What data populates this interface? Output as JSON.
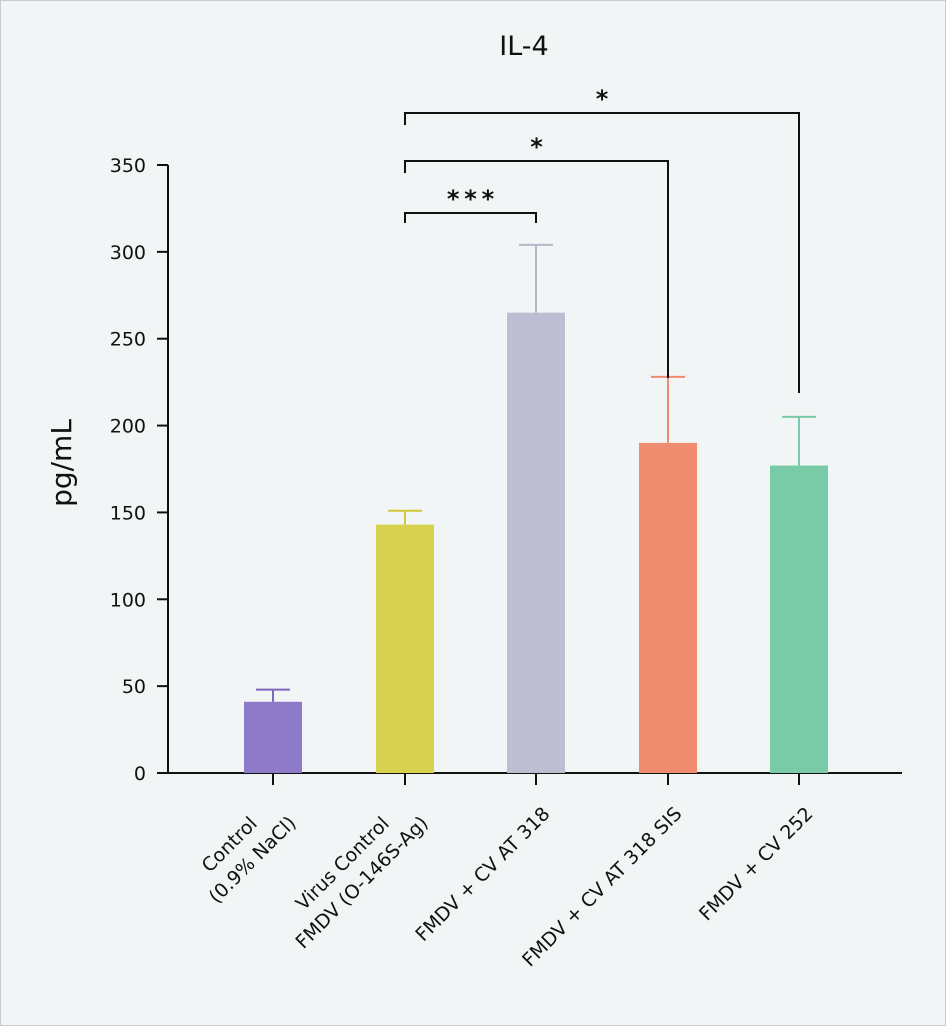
{
  "chart_data": {
    "type": "bar",
    "title": "IL-4",
    "xlabel": "",
    "ylabel": "pg/mL",
    "ylim": [
      0,
      350
    ],
    "yticks": [
      0,
      50,
      100,
      150,
      200,
      250,
      300,
      350
    ],
    "grid": false,
    "categories": [
      [
        "Control",
        "(0.9% NaCl)"
      ],
      [
        "Virus Control",
        "FMDV (O-146S-Ag)"
      ],
      [
        "FMDV + CV AT 318"
      ],
      [
        "FMDV + CV AT 318 SIS"
      ],
      [
        "FMDV + CV 252"
      ]
    ],
    "values": [
      41,
      143,
      265,
      190,
      177
    ],
    "errors": [
      7,
      8,
      39,
      38,
      28
    ],
    "colors": [
      "#8d7bca",
      "#d6d24f",
      "#bfbdd1",
      "#ef8c6f",
      "#79cba7"
    ],
    "error_colors": [
      "#7b68bf",
      "#cfc83a",
      "#b7b6c9",
      "#ef8c6f",
      "#79cba7"
    ],
    "significance": [
      {
        "from": 1,
        "to": 2,
        "label": "***"
      },
      {
        "from": 1,
        "to": 3,
        "label": "*"
      },
      {
        "from": 1,
        "to": 4,
        "label": "*"
      }
    ]
  }
}
